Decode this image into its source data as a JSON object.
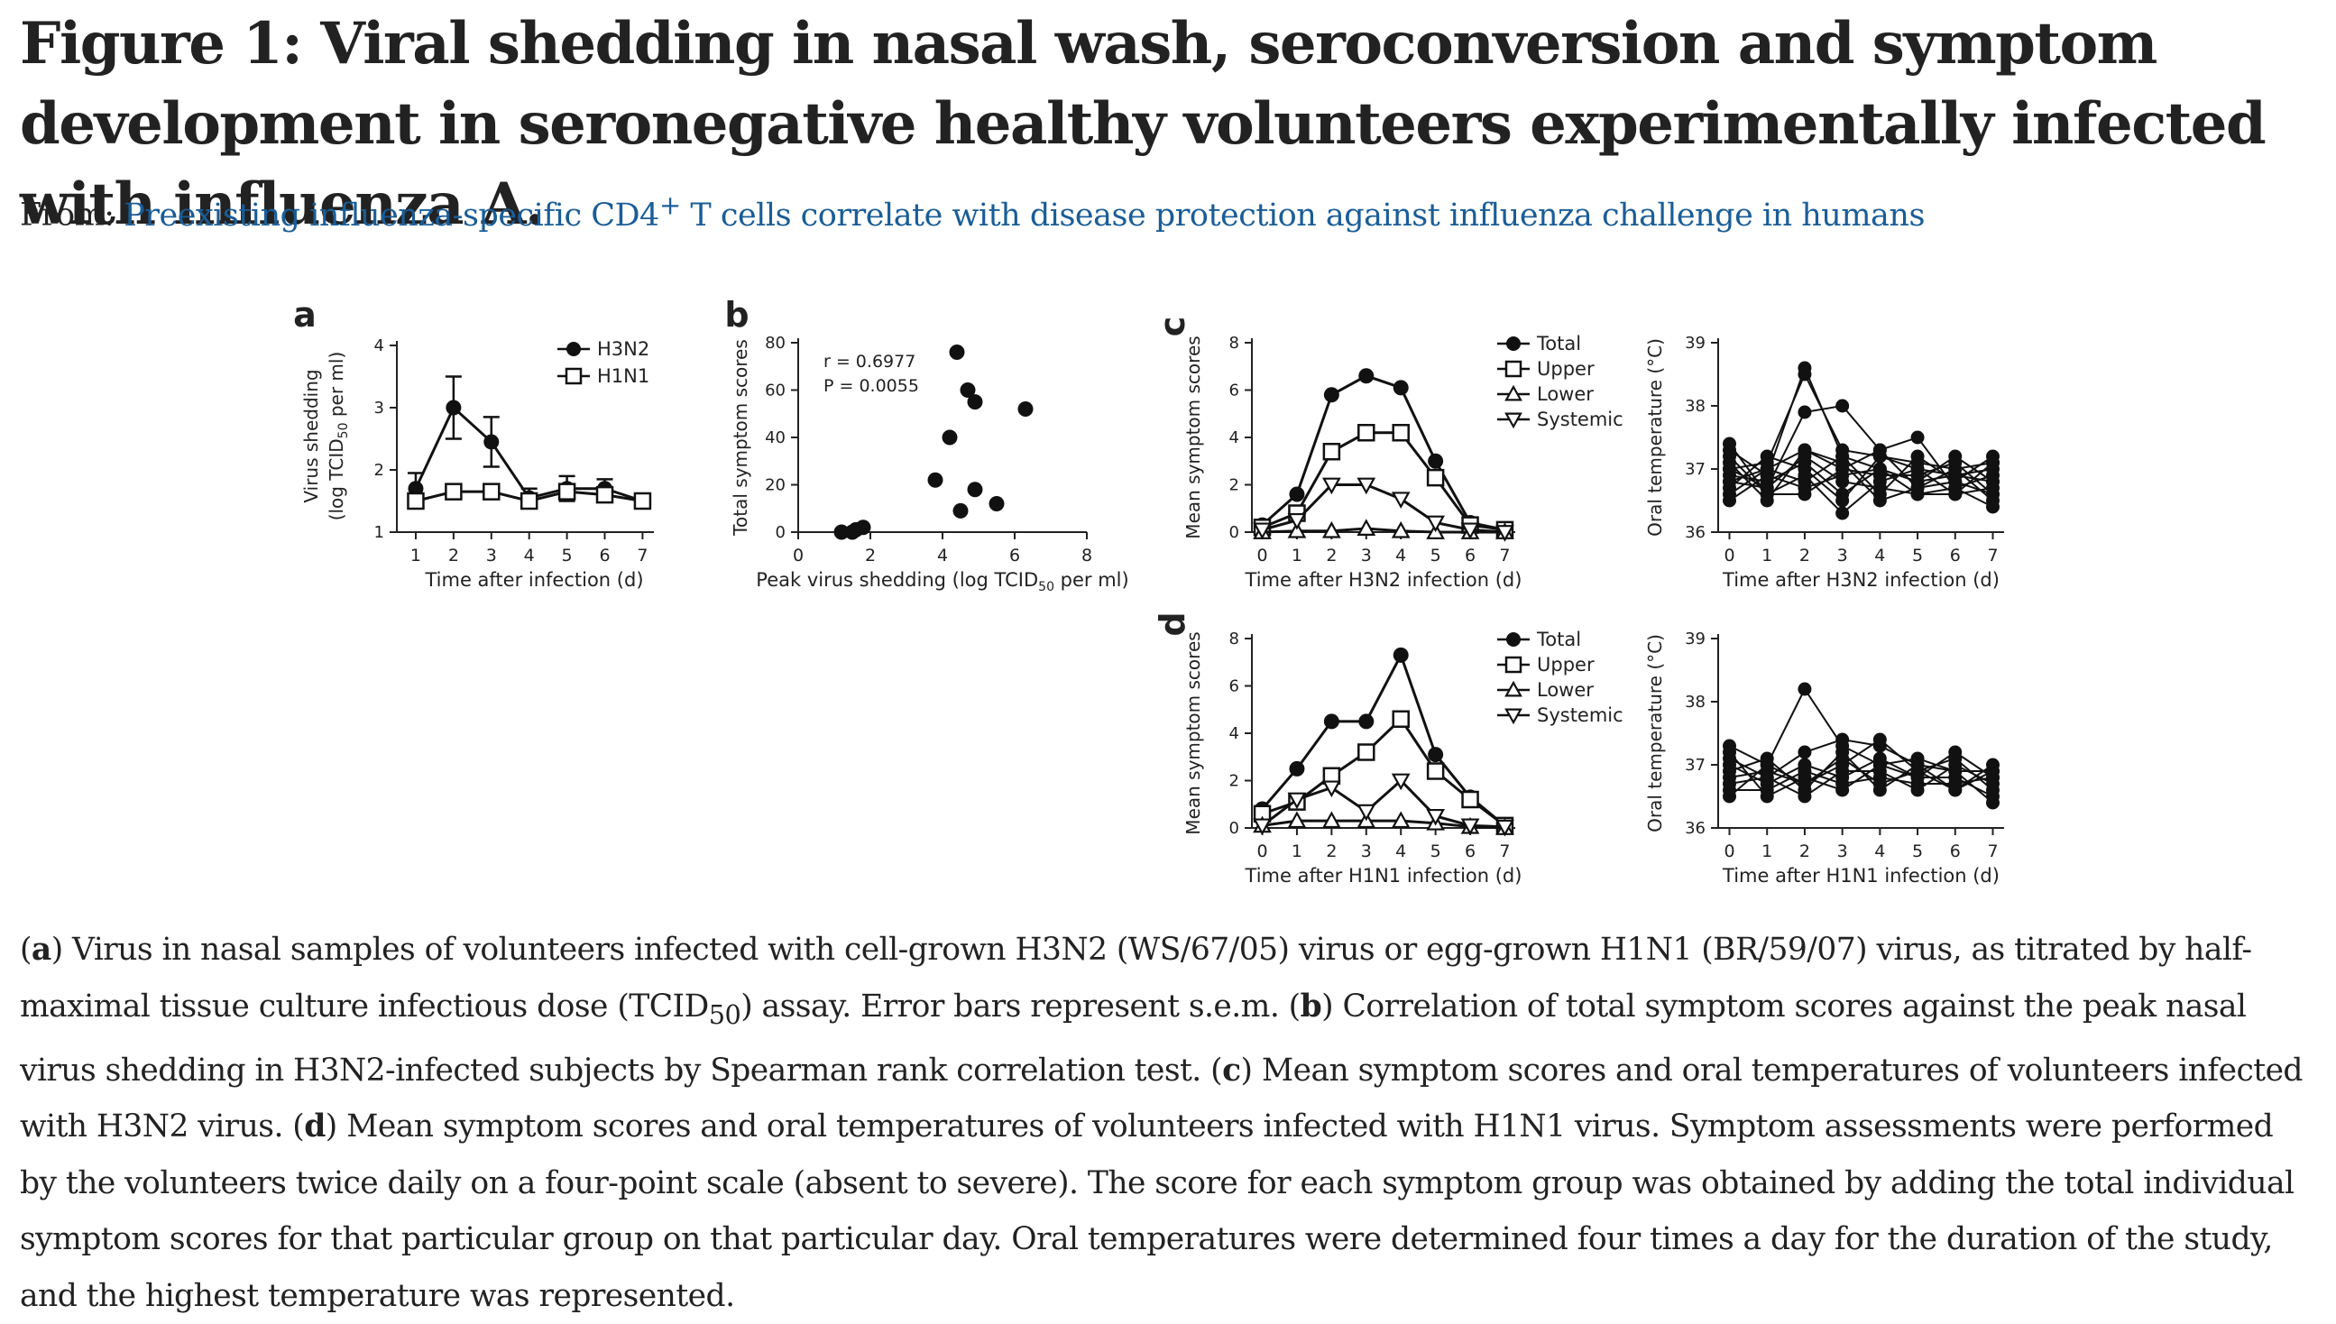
{
  "title": "Figure 1: Viral shedding in nasal wash, seroconversion and symptom development in seronegative healthy volunteers experimentally infected with influenza A.",
  "from": {
    "prefix": "From:",
    "link_pre": "Preexisting influenza-specific CD4",
    "link_sup": "+",
    "link_post": " T cells correlate with disease protection against influenza challenge in humans"
  },
  "caption": {
    "s1": "(",
    "a": "a",
    "s2": ") Virus in nasal samples of volunteers infected with cell-grown H3N2 (WS/67/05) virus or egg-grown H1N1 (BR/59/07) virus, as titrated by half-maximal tissue culture infectious dose (TCID",
    "sub": "50",
    "s3": ") assay. Error bars represent s.e.m. (",
    "b": "b",
    "s4": ") Correlation of total symptom scores against the peak nasal virus shedding in H3N2-infected subjects by Spearman rank correlation test. (",
    "c": "c",
    "s5": ") Mean symptom scores and oral temperatures of volunteers infected with H3N2 virus. (",
    "d": "d",
    "s6": ") Mean symptom scores and oral temperatures of volunteers infected with H1N1 virus. Symptom assessments were performed by the volunteers twice daily on a four-point scale (absent to severe). The score for each symptom group was obtained by adding the total individual symptom scores for that particular group on that particular day. Oral temperatures were determined four times a day for the duration of the study, and the highest temperature was represented."
  },
  "chart_data": [
    {
      "panel": "a",
      "type": "line",
      "x": [
        1,
        2,
        3,
        4,
        5,
        6,
        7
      ],
      "series": [
        {
          "name": "H3N2",
          "marker": "filled-circle",
          "values": [
            1.7,
            3.0,
            2.45,
            1.55,
            1.7,
            1.7,
            1.5
          ],
          "error": [
            0.25,
            0.5,
            0.4,
            0.15,
            0.2,
            0.15,
            0
          ]
        },
        {
          "name": "H1N1",
          "marker": "open-square",
          "values": [
            1.5,
            1.65,
            1.65,
            1.5,
            1.65,
            1.6,
            1.5
          ],
          "error": [
            0,
            0,
            0,
            0,
            0,
            0,
            0
          ]
        }
      ],
      "xlabel": "Time after infection (d)",
      "ylabel_line1": "Virus shedding",
      "ylabel_line2": "(log TCID50 per ml)",
      "xlim": [
        0.5,
        7.3
      ],
      "ylim": [
        1,
        4
      ],
      "xticks": [
        1,
        2,
        3,
        4,
        5,
        6,
        7
      ],
      "yticks": [
        1,
        2,
        3,
        4
      ],
      "legend": "top-right"
    },
    {
      "panel": "b",
      "type": "scatter",
      "points": [
        [
          1.2,
          0
        ],
        [
          1.5,
          0
        ],
        [
          1.8,
          2
        ],
        [
          1.6,
          1
        ],
        [
          4.2,
          40
        ],
        [
          4.4,
          76
        ],
        [
          4.7,
          60
        ],
        [
          4.9,
          55
        ],
        [
          6.3,
          52
        ],
        [
          3.8,
          22
        ],
        [
          4.9,
          18
        ],
        [
          5.5,
          12
        ],
        [
          4.5,
          9
        ]
      ],
      "xlabel": "Peak virus shedding (log TCID50 per ml)",
      "ylabel": "Total symptom scores",
      "annotation_r": "r = 0.6977",
      "annotation_p": "P = 0.0055",
      "xlim": [
        0,
        8
      ],
      "ylim": [
        0,
        80
      ],
      "xticks": [
        0,
        2,
        4,
        6,
        8
      ],
      "yticks": [
        0,
        20,
        40,
        60,
        80
      ]
    },
    {
      "panel": "c",
      "type": "line",
      "x": [
        0,
        1,
        2,
        3,
        4,
        5,
        6,
        7
      ],
      "series": [
        {
          "name": "Total",
          "marker": "filled-circle",
          "values": [
            0.3,
            1.6,
            5.8,
            6.6,
            6.1,
            3.0,
            0.4,
            0.1
          ]
        },
        {
          "name": "Upper",
          "marker": "open-square",
          "values": [
            0.2,
            0.8,
            3.4,
            4.2,
            4.2,
            2.3,
            0.3,
            0.1
          ]
        },
        {
          "name": "Lower",
          "marker": "open-triangle-up",
          "values": [
            0,
            0.05,
            0.05,
            0.15,
            0.05,
            0,
            0,
            0
          ]
        },
        {
          "name": "Systemic",
          "marker": "open-triangle-down",
          "values": [
            0.1,
            0.5,
            2.0,
            2.0,
            1.4,
            0.4,
            0.1,
            0
          ]
        }
      ],
      "xlabel": "Time after H3N2 infection (d)",
      "ylabel": "Mean symptom scores",
      "xlim": [
        -0.3,
        7.3
      ],
      "ylim": [
        0,
        8
      ],
      "xticks": [
        0,
        1,
        2,
        3,
        4,
        5,
        6,
        7
      ],
      "yticks": [
        0,
        2,
        4,
        6,
        8
      ],
      "legend": "top-right"
    },
    {
      "panel": "c-temperature",
      "type": "line",
      "x": [
        0,
        1,
        2,
        3,
        4,
        5,
        6,
        7
      ],
      "series": [
        {
          "values": [
            37.3,
            36.9,
            38.6,
            37.2,
            37.0,
            36.8,
            36.9,
            36.8
          ]
        },
        {
          "values": [
            37.0,
            37.1,
            38.5,
            37.3,
            37.2,
            37.1,
            37.0,
            37.1
          ]
        },
        {
          "values": [
            36.8,
            36.7,
            37.9,
            38.0,
            37.3,
            37.5,
            36.7,
            36.9
          ]
        },
        {
          "values": [
            37.1,
            36.5,
            37.3,
            37.0,
            37.3,
            36.7,
            37.0,
            36.5
          ]
        },
        {
          "values": [
            36.6,
            37.0,
            36.8,
            37.2,
            36.6,
            37.2,
            36.8,
            37.2
          ]
        },
        {
          "values": [
            36.9,
            36.8,
            37.1,
            36.6,
            37.0,
            36.6,
            36.6,
            36.7
          ]
        },
        {
          "values": [
            37.2,
            36.6,
            36.6,
            37.0,
            36.9,
            36.9,
            37.1,
            36.6
          ]
        },
        {
          "values": [
            36.7,
            37.2,
            37.0,
            36.5,
            37.2,
            37.0,
            36.9,
            37.0
          ]
        },
        {
          "values": [
            37.0,
            36.7,
            37.2,
            36.8,
            36.7,
            36.6,
            36.7,
            36.4
          ]
        },
        {
          "values": [
            36.5,
            36.9,
            36.7,
            36.9,
            37.0,
            36.8,
            37.2,
            36.8
          ]
        },
        {
          "values": [
            37.4,
            36.6,
            36.9,
            36.3,
            36.8,
            37.0,
            36.6,
            37.1
          ]
        },
        {
          "values": [
            36.8,
            37.0,
            37.3,
            37.1,
            36.5,
            36.7,
            36.8,
            36.6
          ]
        }
      ],
      "xlabel": "Time after H3N2 infection (d)",
      "ylabel": "Oral temperature (°C)",
      "xlim": [
        -0.3,
        7.3
      ],
      "ylim": [
        36,
        39
      ],
      "xticks": [
        0,
        1,
        2,
        3,
        4,
        5,
        6,
        7
      ],
      "yticks": [
        36,
        37,
        38,
        39
      ]
    },
    {
      "panel": "d",
      "type": "line",
      "x": [
        0,
        1,
        2,
        3,
        4,
        5,
        6,
        7
      ],
      "series": [
        {
          "name": "Total",
          "marker": "filled-circle",
          "values": [
            0.8,
            2.5,
            4.5,
            4.5,
            7.3,
            3.1,
            1.3,
            0.1
          ]
        },
        {
          "name": "Upper",
          "marker": "open-square",
          "values": [
            0.6,
            1.1,
            2.2,
            3.2,
            4.6,
            2.4,
            1.2,
            0.1
          ]
        },
        {
          "name": "Lower",
          "marker": "open-triangle-up",
          "values": [
            0.1,
            0.3,
            0.3,
            0.3,
            0.3,
            0.2,
            0.05,
            0
          ]
        },
        {
          "name": "Systemic",
          "marker": "open-triangle-down",
          "values": [
            0.1,
            1.2,
            1.7,
            0.7,
            2.0,
            0.5,
            0.1,
            0.05
          ]
        }
      ],
      "xlabel": "Time after H1N1 infection (d)",
      "ylabel": "Mean symptom scores",
      "xlim": [
        -0.3,
        7.3
      ],
      "ylim": [
        0,
        8
      ],
      "xticks": [
        0,
        1,
        2,
        3,
        4,
        5,
        6,
        7
      ],
      "yticks": [
        0,
        2,
        4,
        6,
        8
      ],
      "legend": "top-right"
    },
    {
      "panel": "d-temperature",
      "type": "line",
      "x": [
        0,
        1,
        2,
        3,
        4,
        5,
        6,
        7
      ],
      "series": [
        {
          "values": [
            37.3,
            37.0,
            38.2,
            37.3,
            37.0,
            36.8,
            37.2,
            36.8
          ]
        },
        {
          "values": [
            37.1,
            36.8,
            37.2,
            37.4,
            37.3,
            37.0,
            36.9,
            36.9
          ]
        },
        {
          "values": [
            36.8,
            36.9,
            36.7,
            37.0,
            37.4,
            36.9,
            37.1,
            36.6
          ]
        },
        {
          "values": [
            36.6,
            36.6,
            36.9,
            36.7,
            36.8,
            36.7,
            36.7,
            36.8
          ]
        },
        {
          "values": [
            36.9,
            37.1,
            36.6,
            37.2,
            36.6,
            37.0,
            36.6,
            37.0
          ]
        },
        {
          "values": [
            37.0,
            36.7,
            37.0,
            36.8,
            37.1,
            36.8,
            36.8,
            36.5
          ]
        },
        {
          "values": [
            36.7,
            36.8,
            36.5,
            36.9,
            36.9,
            36.6,
            37.0,
            36.7
          ]
        },
        {
          "values": [
            37.2,
            36.5,
            36.8,
            36.6,
            37.0,
            37.1,
            36.9,
            36.4
          ]
        },
        {
          "values": [
            36.5,
            37.0,
            36.7,
            37.1,
            36.7,
            36.9,
            36.6,
            36.9
          ]
        }
      ],
      "xlabel": "Time after H1N1 infection (d)",
      "ylabel": "Oral temperature (°C)",
      "xlim": [
        -0.3,
        7.3
      ],
      "ylim": [
        36,
        39
      ],
      "xticks": [
        0,
        1,
        2,
        3,
        4,
        5,
        6,
        7
      ],
      "yticks": [
        36,
        37,
        38,
        39
      ]
    }
  ]
}
